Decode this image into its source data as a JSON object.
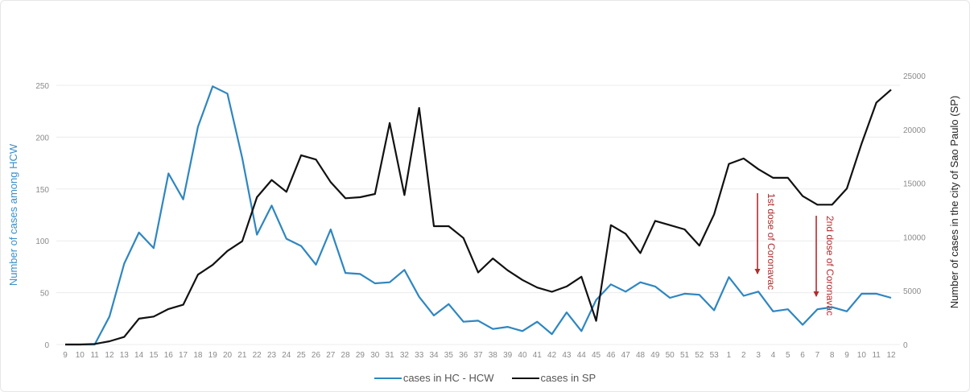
{
  "chart_data": {
    "type": "line",
    "title": "",
    "xlabel": "",
    "ylabel_left": "Number of cases among HCW",
    "ylabel_right": "Number of cases in the city of  Sao Paulo (SP)",
    "ylim_left": [
      0,
      250
    ],
    "ylim_right": [
      0,
      25000
    ],
    "yticks_left": [
      0,
      50,
      100,
      150,
      200,
      250
    ],
    "yticks_right": [
      0,
      5000,
      10000,
      15000,
      20000,
      25000
    ],
    "grid": true,
    "legend_position": "bottom",
    "categories": [
      "9",
      "10",
      "11",
      "12",
      "13",
      "14",
      "15",
      "16",
      "17",
      "18",
      "19",
      "20",
      "21",
      "22",
      "23",
      "24",
      "25",
      "26",
      "27",
      "28",
      "29",
      "30",
      "31",
      "32",
      "33",
      "34",
      "35",
      "36",
      "37",
      "38",
      "39",
      "40",
      "41",
      "42",
      "43",
      "44",
      "45",
      "46",
      "47",
      "48",
      "49",
      "50",
      "51",
      "52",
      "53",
      "1",
      "2",
      "3",
      "4",
      "5",
      "6",
      "7",
      "8",
      "9",
      "10",
      "11",
      "12"
    ],
    "series": [
      {
        "name": "cases in HC - HCW",
        "axis": "left",
        "color": "#2e86c1",
        "values": [
          0,
          0,
          0,
          27,
          78,
          108,
          93,
          165,
          140,
          210,
          249,
          242,
          180,
          106,
          134,
          102,
          95,
          77,
          111,
          69,
          68,
          59,
          60,
          72,
          46,
          28,
          39,
          22,
          23,
          15,
          17,
          13,
          22,
          10,
          31,
          13,
          43,
          58,
          51,
          60,
          56,
          45,
          49,
          48,
          33,
          65,
          47,
          51,
          32,
          34,
          19,
          34,
          36,
          32,
          49,
          49,
          45
        ]
      },
      {
        "name": "cases in SP",
        "axis": "right",
        "color": "#111111",
        "values": [
          0,
          0,
          50,
          300,
          700,
          2400,
          2600,
          3300,
          3700,
          6500,
          7400,
          8700,
          9600,
          13700,
          15300,
          14200,
          17600,
          17200,
          15100,
          13600,
          13700,
          14000,
          20600,
          13900,
          22000,
          11000,
          11000,
          9900,
          6700,
          8000,
          6900,
          6000,
          5300,
          4900,
          5400,
          6300,
          2200,
          11100,
          10300,
          8500,
          11500,
          11100,
          10700,
          9200,
          12100,
          16800,
          17300,
          16300,
          15500,
          15500,
          13800,
          13000,
          13000,
          14500,
          18700,
          22500,
          23700
        ]
      }
    ],
    "annotations": [
      {
        "text": "1st dose of Coronavac",
        "category_index": 47,
        "color": "#b22a2e"
      },
      {
        "text": "2nd dose of Coronavac",
        "category_index": 51,
        "color": "#b22a2e"
      }
    ]
  },
  "legend": {
    "hcw_label": "cases in HC - HCW",
    "sp_label": "cases in SP"
  }
}
